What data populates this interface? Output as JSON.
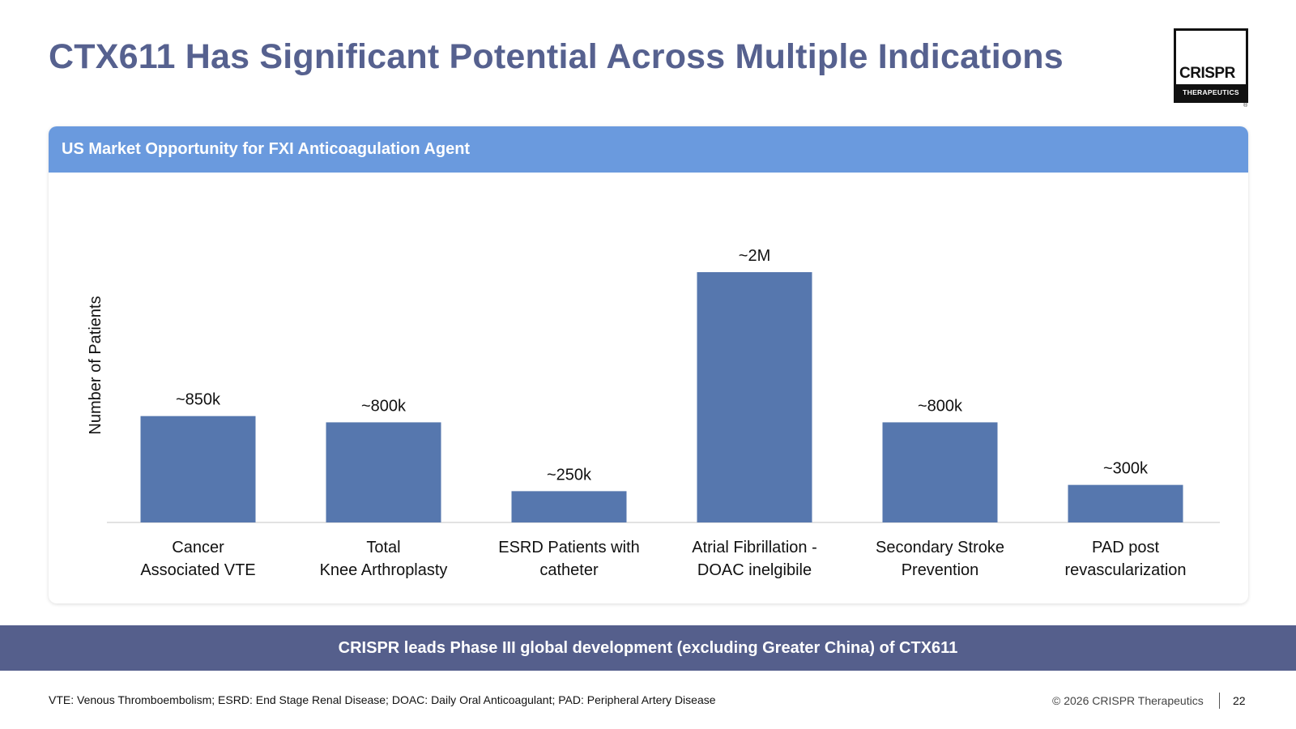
{
  "title": "CTX611 Has Significant Potential Across Multiple Indications",
  "logo": {
    "name": "CRISPR",
    "subtitle": "THERAPEUTICS",
    "mark": "®"
  },
  "panel": {
    "header": "US Market Opportunity for FXI Anticoagulation Agent"
  },
  "chart_data": {
    "type": "bar",
    "title": "",
    "xlabel": "",
    "ylabel": "Number of Patients",
    "categories": [
      [
        "Cancer",
        "Associated VTE"
      ],
      [
        "Total",
        "Knee Arthroplasty"
      ],
      [
        "ESRD Patients with",
        "catheter"
      ],
      [
        "Atrial Fibrillation -",
        "DOAC inelgibile"
      ],
      [
        "Secondary Stroke",
        "Prevention"
      ],
      [
        "PAD post",
        "revascularization"
      ]
    ],
    "values": [
      850000,
      800000,
      250000,
      2000000,
      800000,
      300000
    ],
    "data_labels": [
      "~850k",
      "~800k",
      "~250k",
      "~2M",
      "~800k",
      "~300k"
    ],
    "ylim": [
      0,
      2000000
    ],
    "grid": false,
    "legend": "none",
    "bar_color": "#5677ae"
  },
  "banner": "CRISPR leads Phase III global development (excluding Greater China) of CTX611",
  "footnote": "VTE: Venous Thromboembolism; ESRD: End Stage Renal Disease; DOAC: Daily Oral Anticoagulant; PAD: Peripheral Artery Disease",
  "footer": {
    "copyright": "© 2026 CRISPR Therapeutics",
    "page": "22"
  },
  "colors": {
    "title": "#56618f",
    "panel_header": "#6a9ade",
    "banner": "#555f8c",
    "bar": "#5677ae"
  }
}
